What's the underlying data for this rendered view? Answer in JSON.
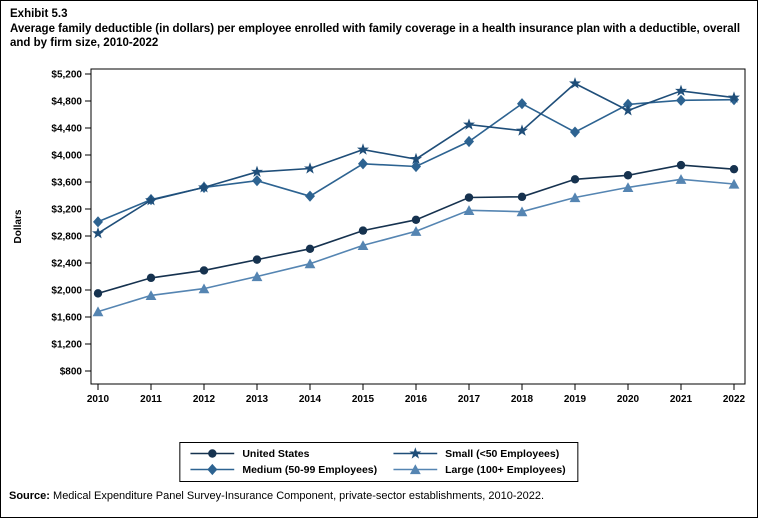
{
  "page": {
    "exhibit_label": "Exhibit 5.3",
    "title": "Average family deductible (in dollars) per employee enrolled with family coverage in a health insurance plan with a deductible, overall and by firm size, 2010-2022",
    "source_label": "Source:",
    "source_text": " Medical Expenditure Panel Survey-Insurance Component, private-sector establishments, 2010-2022."
  },
  "chart_data": {
    "type": "line",
    "title": "Average family deductible (in dollars) per employee enrolled with family coverage in a health insurance plan with a deductible, overall and by firm size, 2010-2022",
    "xlabel": "",
    "ylabel": "Dollars",
    "ylim": [
      800,
      5200
    ],
    "y_tick_step": 400,
    "y_ticks": [
      "$800",
      "$1,200",
      "$1,600",
      "$2,000",
      "$2,400",
      "$2,800",
      "$3,200",
      "$3,600",
      "$4,000",
      "$4,400",
      "$4,800",
      "$5,200"
    ],
    "x": [
      2010,
      2011,
      2012,
      2013,
      2014,
      2015,
      2016,
      2017,
      2018,
      2019,
      2020,
      2021,
      2022
    ],
    "grid": false,
    "legend_position": "bottom-center",
    "series": [
      {
        "name": "United States",
        "marker": "circle",
        "color": "#16324f",
        "values": [
          1950,
          2180,
          2290,
          2450,
          2610,
          2880,
          3040,
          3370,
          3380,
          3640,
          3700,
          3850,
          3790
        ]
      },
      {
        "name": "Medium (50-99 Employees)",
        "marker": "diamond",
        "color": "#2d6391",
        "values": [
          3010,
          3340,
          3520,
          3620,
          3390,
          3870,
          3830,
          4200,
          4760,
          4340,
          4750,
          4810,
          4820
        ]
      },
      {
        "name": "Small (<50 Employees)",
        "marker": "star",
        "color": "#1f4e79",
        "values": [
          2840,
          3330,
          3520,
          3750,
          3800,
          4080,
          3940,
          4450,
          4360,
          5060,
          4660,
          4950,
          4850
        ]
      },
      {
        "name": "Large (100+ Employees)",
        "marker": "triangle",
        "color": "#5585b2",
        "values": [
          1680,
          1920,
          2020,
          2200,
          2390,
          2660,
          2870,
          3180,
          3160,
          3370,
          3520,
          3640,
          3570
        ]
      }
    ]
  }
}
